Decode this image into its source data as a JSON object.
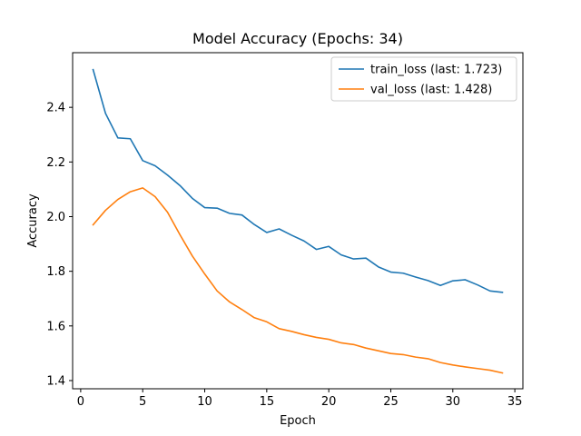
{
  "chart_data": {
    "type": "line",
    "title": "Model Accuracy (Epochs: 34)",
    "xlabel": "Epoch",
    "ylabel": "Accuracy",
    "xlim": [
      -0.65,
      35.65
    ],
    "ylim": [
      1.37,
      2.6
    ],
    "xticks": [
      0,
      5,
      10,
      15,
      20,
      25,
      30,
      35
    ],
    "yticks": [
      1.4,
      1.6,
      1.8,
      2.0,
      2.2,
      2.4
    ],
    "ytick_labels": [
      "1.4",
      "1.6",
      "1.8",
      "2.0",
      "2.2",
      "2.4"
    ],
    "grid": false,
    "legend_position": "top-right",
    "x": [
      1,
      2,
      3,
      4,
      5,
      6,
      7,
      8,
      9,
      10,
      11,
      12,
      13,
      14,
      15,
      16,
      17,
      18,
      19,
      20,
      21,
      22,
      23,
      24,
      25,
      26,
      27,
      28,
      29,
      30,
      31,
      32,
      33,
      34
    ],
    "series": [
      {
        "name": "train_loss (last: 1.723)",
        "color": "#1f77b4",
        "values": [
          2.538,
          2.378,
          2.288,
          2.285,
          2.205,
          2.186,
          2.152,
          2.114,
          2.067,
          2.033,
          2.031,
          2.012,
          2.006,
          1.971,
          1.942,
          1.955,
          1.932,
          1.911,
          1.88,
          1.891,
          1.86,
          1.845,
          1.848,
          1.816,
          1.797,
          1.793,
          1.779,
          1.766,
          1.748,
          1.765,
          1.769,
          1.75,
          1.728,
          1.723
        ]
      },
      {
        "name": "val_loss (last: 1.428)",
        "color": "#ff7f0e",
        "values": [
          1.97,
          2.023,
          2.063,
          2.091,
          2.105,
          2.073,
          2.016,
          1.934,
          1.856,
          1.79,
          1.728,
          1.688,
          1.66,
          1.63,
          1.615,
          1.59,
          1.58,
          1.568,
          1.558,
          1.551,
          1.538,
          1.532,
          1.519,
          1.509,
          1.499,
          1.495,
          1.486,
          1.48,
          1.466,
          1.457,
          1.45,
          1.444,
          1.438,
          1.428
        ]
      }
    ]
  }
}
